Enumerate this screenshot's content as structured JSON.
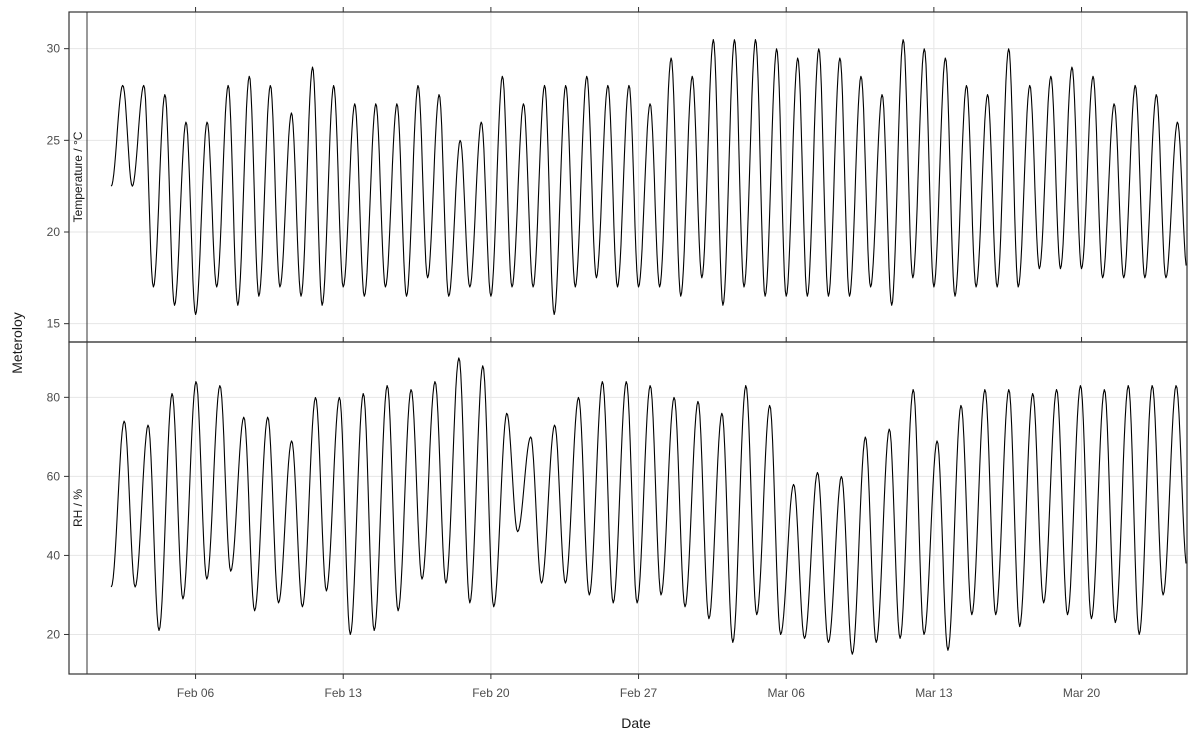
{
  "chart_data": {
    "type": "line",
    "xlabel": "Date",
    "ylabel": "Meteroloy",
    "xlim": [
      "2023-01-31",
      "2023-03-25"
    ],
    "x_ticks": [
      {
        "date": "2023-02-06",
        "label": "Feb 06"
      },
      {
        "date": "2023-02-13",
        "label": "Feb 13"
      },
      {
        "date": "2023-02-20",
        "label": "Feb 20"
      },
      {
        "date": "2023-02-27",
        "label": "Feb 27"
      },
      {
        "date": "2023-03-06",
        "label": "Mar 06"
      },
      {
        "date": "2023-03-13",
        "label": "Mar 13"
      },
      {
        "date": "2023-03-20",
        "label": "Mar 20"
      }
    ],
    "grid": true,
    "panels": [
      {
        "strip_label": "Temperature / °C",
        "ylim": [
          14,
          32
        ],
        "yticks": [
          15,
          20,
          25,
          30
        ],
        "series": [
          {
            "daily_max": [
              28.0,
              28.0,
              27.5,
              26.0,
              26.0,
              28.0,
              28.5,
              28.0,
              26.5,
              29.0,
              28.0,
              27.0,
              27.0,
              27.0,
              28.0,
              27.5,
              25.0,
              26.0,
              28.5,
              27.0,
              28.0,
              28.0,
              28.5,
              28.0,
              28.0,
              27.0,
              29.5,
              28.5,
              30.5,
              30.5,
              30.5,
              30.0,
              29.5,
              30.0,
              29.5,
              28.5,
              27.5,
              30.5,
              30.0,
              29.5,
              28.0,
              27.5,
              30.0,
              28.0,
              28.5,
              29.0,
              28.5,
              27.0,
              28.0,
              27.5,
              26.0
            ],
            "daily_min": [
              22.5,
              17.0,
              16.0,
              15.5,
              17.0,
              16.0,
              16.5,
              17.0,
              16.5,
              16.0,
              17.0,
              16.5,
              17.0,
              16.5,
              17.5,
              16.5,
              17.0,
              16.5,
              17.0,
              17.0,
              15.5,
              17.0,
              17.5,
              17.0,
              17.0,
              17.0,
              16.5,
              17.5,
              16.0,
              17.0,
              16.5,
              16.5,
              16.5,
              16.5,
              16.5,
              17.0,
              16.0,
              17.5,
              17.0,
              16.5,
              17.0,
              17.0,
              17.0,
              18.0,
              18.0,
              18.0,
              17.5,
              17.5,
              17.5,
              17.5,
              18.0
            ]
          }
        ]
      },
      {
        "strip_label": "RH / %",
        "ylim": [
          10,
          94
        ],
        "yticks": [
          20,
          40,
          60,
          80
        ],
        "series": [
          {
            "daily_max": [
              74,
              73,
              81,
              84,
              83,
              75,
              75,
              69,
              80,
              80,
              81,
              83,
              82,
              84,
              90,
              88,
              76,
              70,
              73,
              80,
              84,
              84,
              83,
              80,
              79,
              76,
              83,
              78,
              58,
              61,
              60,
              70,
              72,
              82,
              69,
              78,
              82,
              82,
              81,
              82,
              83,
              82,
              83,
              83,
              83
            ],
            "daily_min": [
              32,
              21,
              29,
              34,
              36,
              26,
              28,
              27,
              31,
              20,
              21,
              26,
              34,
              33,
              28,
              27,
              46,
              33,
              33,
              30,
              28,
              28,
              30,
              27,
              24,
              18,
              25,
              20,
              19,
              18,
              15,
              18,
              19,
              20,
              16,
              25,
              25,
              22,
              28,
              25,
              24,
              23,
              20,
              30,
              37
            ]
          }
        ]
      }
    ]
  }
}
